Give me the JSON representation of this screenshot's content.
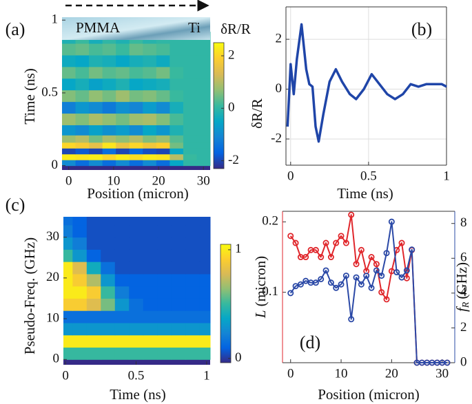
{
  "chart_data": [
    {
      "type": "heatmap",
      "panel_label": "(a)",
      "xlabel": "Position (micron)",
      "ylabel": "Time (ns)",
      "colorbar_label": "δR/R",
      "annotations": [
        "PMMA",
        "Ti"
      ],
      "x": [
        0,
        3,
        6,
        9,
        12,
        15,
        18,
        21,
        24,
        27,
        30
      ],
      "y": [
        0.02,
        0.06,
        0.1,
        0.14,
        0.18,
        0.24,
        0.32,
        0.4,
        0.48,
        0.56,
        0.64,
        0.72,
        0.8,
        0.88
      ],
      "z": [
        [
          -1,
          -1.5,
          -1,
          -1.5,
          -1,
          -1.5,
          -1,
          -1.5,
          -0.5,
          0,
          0
        ],
        [
          2.3,
          2.2,
          2.3,
          2,
          2.3,
          2.1,
          2.3,
          2.2,
          1,
          0.1,
          0
        ],
        [
          -2,
          -1.8,
          -2,
          -1.5,
          -2,
          -1.6,
          -1.9,
          -2,
          -0.5,
          0,
          0
        ],
        [
          2,
          1.8,
          1.5,
          2.2,
          1.6,
          2,
          1.7,
          1.9,
          0.5,
          0,
          0
        ],
        [
          0.8,
          1,
          0.5,
          0.9,
          0.7,
          1,
          0.6,
          0.8,
          0.3,
          0,
          0
        ],
        [
          -0.8,
          -1,
          -0.6,
          -0.9,
          -0.7,
          -1,
          -0.5,
          -0.8,
          -0.2,
          0,
          0
        ],
        [
          0.8,
          0.6,
          0.9,
          0.7,
          0.5,
          0.8,
          0.9,
          0.6,
          0.2,
          0,
          0
        ],
        [
          -1.2,
          -0.8,
          -1,
          -1.3,
          -0.9,
          -1.1,
          -0.7,
          -1,
          -0.3,
          0,
          0
        ],
        [
          0.6,
          0.4,
          0.7,
          0.5,
          0.8,
          0.5,
          0.6,
          0.4,
          0.1,
          0,
          0
        ],
        [
          -0.5,
          -0.3,
          -0.6,
          -0.4,
          -0.2,
          -0.5,
          -0.4,
          -0.3,
          0,
          0,
          0
        ],
        [
          0.4,
          0.2,
          0.5,
          0.3,
          0.4,
          0.2,
          0.3,
          0.5,
          0.1,
          0,
          0
        ],
        [
          -0.4,
          -0.5,
          -0.2,
          -0.3,
          -0.5,
          -0.3,
          -0.2,
          -0.4,
          0,
          0,
          0
        ],
        [
          0.3,
          0.4,
          0.2,
          0.3,
          0.1,
          0.4,
          0.3,
          0.2,
          0,
          0,
          0
        ],
        [
          -0.2,
          0.1,
          -0.3,
          0,
          -0.2,
          0.1,
          -0.1,
          0,
          0,
          0,
          0
        ]
      ],
      "xlim": [
        -1.5,
        31.5
      ],
      "ylim": [
        -0.03,
        1.02
      ],
      "xticks": [
        0,
        10,
        20,
        30
      ],
      "yticks": [
        0,
        0.5,
        1
      ],
      "zlim": [
        -2.3,
        2.5
      ],
      "colorbar_ticks": [
        -2,
        0,
        2
      ],
      "colormap": [
        "#352a87",
        "#0363e1",
        "#1485d4",
        "#06a7c6",
        "#38b99e",
        "#92bf73",
        "#d9ba56",
        "#fcce2e",
        "#f9fb0e"
      ]
    },
    {
      "type": "line",
      "panel_label": "(b)",
      "xlabel": "Time (ns)",
      "ylabel": "δR/R",
      "grid": true,
      "x": [
        -0.02,
        0,
        0.02,
        0.04,
        0.07,
        0.1,
        0.12,
        0.14,
        0.16,
        0.18,
        0.21,
        0.25,
        0.29,
        0.33,
        0.38,
        0.42,
        0.47,
        0.52,
        0.57,
        0.62,
        0.67,
        0.72,
        0.77,
        0.82,
        0.87,
        0.92,
        0.97,
        1
      ],
      "series": [
        {
          "color": "#1f45a8",
          "values": [
            -1.5,
            1,
            -0.2,
            1.2,
            2.6,
            0.8,
            0.2,
            0.1,
            -1.5,
            -2.1,
            -1,
            0.3,
            0.8,
            0.3,
            -0.2,
            -0.4,
            0,
            0.6,
            0.2,
            -0.2,
            -0.4,
            -0.2,
            0.2,
            0.1,
            0.2,
            0.2,
            0.2,
            0.1
          ]
        }
      ],
      "xlim": [
        -0.03,
        1
      ],
      "ylim": [
        -3.05,
        3.3
      ],
      "xticks": [
        0,
        0.5,
        1
      ],
      "yticks": [
        -2,
        0,
        2
      ]
    },
    {
      "type": "heatmap",
      "panel_label": "(c)",
      "xlabel": "Time (ns)",
      "ylabel": "Pseudo-Freq. (GHz)",
      "x": [
        0,
        0.1,
        0.2,
        0.3,
        0.4,
        0.5,
        0.6,
        0.7,
        0.8,
        0.9,
        1
      ],
      "y": [
        1.5,
        4.5,
        7.5,
        10.5,
        13.5,
        16.5,
        19.5,
        22.5,
        25.5,
        28.5,
        31.5,
        34.5
      ],
      "z": [
        [
          0.5,
          0.5,
          0.5,
          0.5,
          0.5,
          0.5,
          0.5,
          0.5,
          0.5,
          0.5,
          0.5
        ],
        [
          1,
          1,
          1,
          1,
          1,
          1,
          1,
          1,
          1,
          1,
          1
        ],
        [
          0.3,
          0.3,
          0.3,
          0.3,
          0.3,
          0.3,
          0.3,
          0.3,
          0.3,
          0.3,
          0.3
        ],
        [
          0.15,
          0.15,
          0.15,
          0.15,
          0.15,
          0.15,
          0.15,
          0.15,
          0.15,
          0.15,
          0.15
        ],
        [
          0.9,
          0.9,
          0.8,
          0.6,
          0.3,
          0.15,
          0.1,
          0.1,
          0.1,
          0.1,
          0.1
        ],
        [
          1,
          1,
          0.9,
          0.5,
          0.2,
          0.1,
          0.1,
          0.1,
          0.1,
          0.1,
          0.1
        ],
        [
          1,
          0.9,
          0.7,
          0.3,
          0.1,
          0.1,
          0.1,
          0.1,
          0.1,
          0.1,
          0.1
        ],
        [
          1,
          0.8,
          0.4,
          0.15,
          0.05,
          0.05,
          0.05,
          0.05,
          0.05,
          0.05,
          0.05
        ],
        [
          0.5,
          0.3,
          0.1,
          0.05,
          0.05,
          0.05,
          0.05,
          0.05,
          0.05,
          0.05,
          0.05
        ],
        [
          0.3,
          0.2,
          0.05,
          0.05,
          0.05,
          0.05,
          0.05,
          0.05,
          0.05,
          0.05,
          0.05
        ],
        [
          0.2,
          0.1,
          0.05,
          0.05,
          0.05,
          0.05,
          0.05,
          0.05,
          0.05,
          0.05,
          0.05
        ],
        [
          0.15,
          0.1,
          0.05,
          0.05,
          0.05,
          0.05,
          0.05,
          0.05,
          0.05,
          0.05,
          0.05
        ]
      ],
      "xlim": [
        -0.015,
        1.025
      ],
      "ylim": [
        -1.3,
        35
      ],
      "xticks": [
        0,
        0.5,
        1
      ],
      "yticks": [
        0,
        10,
        20,
        30
      ],
      "zlim": [
        -0.04,
        1.05
      ],
      "colorbar_ticks": [
        0,
        1
      ],
      "colormap": [
        "#352a87",
        "#0363e1",
        "#1485d4",
        "#06a7c6",
        "#38b99e",
        "#92bf73",
        "#d9ba56",
        "#fcce2e",
        "#f9fb0e"
      ]
    },
    {
      "type": "line",
      "panel_label": "(d)",
      "xlabel": "Position (micron)",
      "ylabel_symbol": "L",
      "ylabel_unit": "(micron)",
      "y2label_symbol": "f",
      "y2label_subscript": "R",
      "y2label_unit": "(GHz)",
      "marker": "circle",
      "x": [
        0,
        1,
        2,
        3,
        4,
        5,
        6,
        7,
        8,
        9,
        10,
        11,
        12,
        13,
        14,
        15,
        16,
        17,
        18,
        19,
        20,
        21,
        22,
        23,
        24,
        25,
        26,
        27,
        28,
        29,
        30,
        31
      ],
      "series": [
        {
          "color": "#e0262b",
          "values": [
            0.18,
            0.17,
            0.15,
            0.15,
            0.16,
            0.16,
            0.15,
            0.17,
            0.15,
            0.17,
            0.18,
            0.17,
            0.21,
            0.14,
            0.16,
            0.13,
            0.15,
            0.14,
            0.1,
            0.09,
            0.13,
            0.16,
            0.17,
            0.12,
            0.16,
            0,
            0,
            0,
            0,
            0,
            0,
            0
          ]
        },
        {
          "color": "#2a48a6",
          "axis": "y2",
          "values": [
            4,
            4.4,
            4.5,
            4.7,
            4.6,
            4.6,
            4.8,
            5.3,
            4.6,
            4.3,
            4.5,
            5,
            2.5,
            4.9,
            4.5,
            5,
            4.3,
            5.3,
            5,
            6.3,
            8.1,
            5.2,
            4.9,
            5.3,
            6.5,
            0,
            0,
            0,
            0,
            0,
            0,
            0
          ]
        }
      ],
      "xlim": [
        -1.6,
        32.5
      ],
      "ylim": [
        0,
        0.215
      ],
      "y2lim": [
        0,
        8.7
      ],
      "xticks": [
        0,
        10,
        20,
        30
      ],
      "yticks": [
        0.1,
        0.2
      ],
      "y2ticks": [
        0,
        2,
        4,
        6,
        8
      ]
    }
  ]
}
